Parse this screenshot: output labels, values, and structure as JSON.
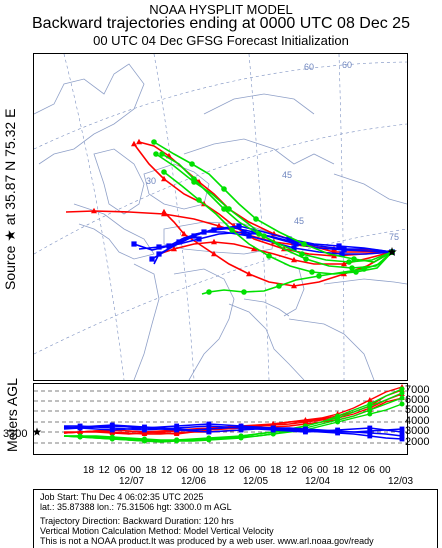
{
  "header": {
    "model": "NOAA HYSPLIT MODEL",
    "title": "Backward trajectories ending at 0000 UTC 08 Dec 25",
    "subtitle": "00 UTC 04 Dec    GFSG  Forecast Initialization"
  },
  "source_label": "Source ★ at   35.87 N   75.32 E",
  "map": {
    "graticule_labels": [
      "60",
      "45",
      "30",
      "75",
      "45",
      "60"
    ],
    "colors": {
      "series_red": "#ff0000",
      "series_blue": "#0000ff",
      "series_green": "#00e000",
      "land": "#8fa0c8"
    },
    "source_marker": "star-icon"
  },
  "altitude_panel": {
    "axis_label": "Meters AGL",
    "start_altitude": "3300",
    "ticks": [
      "7000",
      "6000",
      "5000",
      "4000",
      "3000",
      "2000"
    ]
  },
  "time_axis": {
    "hours": [
      "18",
      "12",
      "06",
      "00",
      "18",
      "12",
      "06",
      "00",
      "18",
      "12",
      "06",
      "00",
      "18",
      "12",
      "06",
      "00",
      "18",
      "12",
      "06",
      "00"
    ],
    "dates": [
      "12/07",
      "12/06",
      "12/05",
      "12/04",
      "12/03"
    ]
  },
  "footer": {
    "line1": "Job Start: Thu Dec  4 06:02:35 UTC 2025",
    "line2": "lat.: 35.87388   lon.: 75.31506   hgt: 3300.0 m AGL",
    "line3": "Trajectory Direction: Backward      Duration: 120 hrs",
    "line4": "Vertical Motion Calculation Method: Model Vertical Velocity",
    "line5": "This is not a NOAA product.It was produced by a web user. www.arl.noaa.gov/ready"
  }
}
